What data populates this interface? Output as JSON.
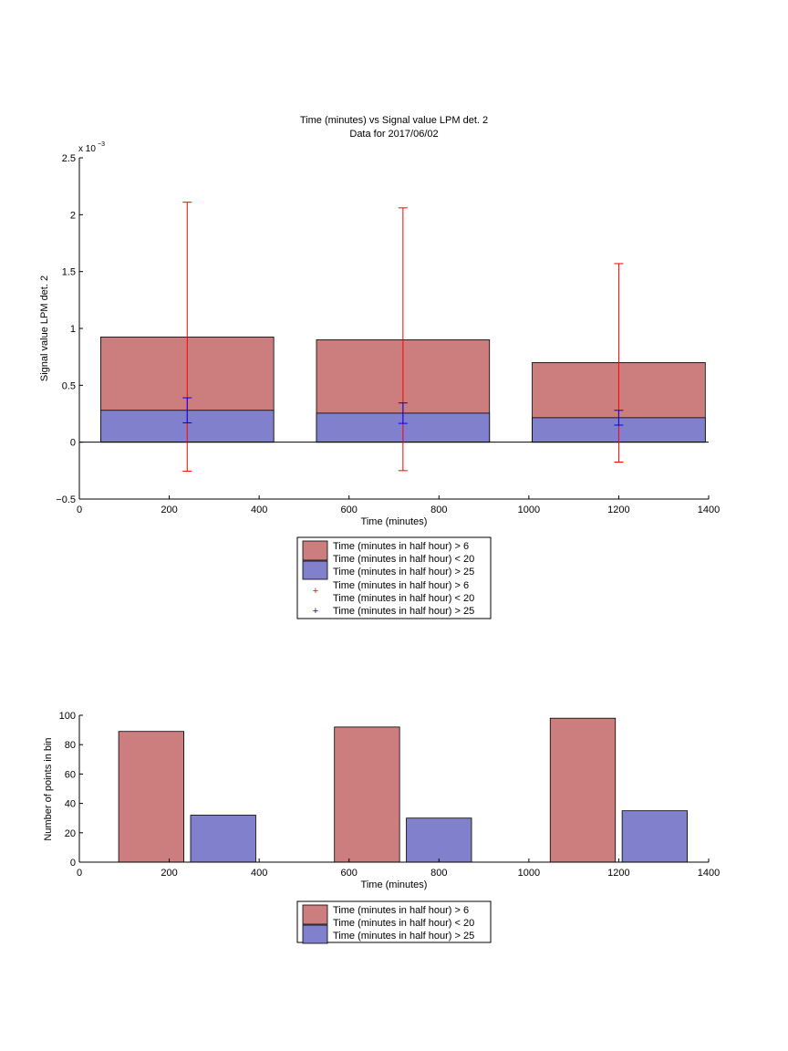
{
  "colors": {
    "red_fill": "#cc7e7e",
    "blue_fill": "#8080cc",
    "err_red": "#ff0000",
    "err_blue": "#0000ff"
  },
  "chart_data": [
    {
      "type": "bar",
      "title": "Time (minutes) vs Signal value LPM det. 2",
      "subtitle": "Data for 2017/06/02",
      "xlabel": "Time (minutes)",
      "ylabel": "Signal value LPM det. 2",
      "y_exponent_label": "x 10",
      "y_exponent_power": "−3",
      "xlim": [
        0,
        1400
      ],
      "ylim": [
        -0.5,
        2.5
      ],
      "y_scale_factor": "1e-3",
      "grid": false,
      "xticks": [
        "0",
        "200",
        "400",
        "600",
        "800",
        "1000",
        "1200",
        "1400"
      ],
      "yticks": [
        "−0.5",
        "0",
        "0.5",
        "1",
        "1.5",
        "2",
        "2.5"
      ],
      "bar_centers": [
        240,
        720,
        1200
      ],
      "bar_width": 385,
      "series": [
        {
          "name": "Time (minutes in half hour) > 6 Time (minutes in half hour) < 20",
          "values": [
            0.925,
            0.9,
            0.7
          ],
          "err_low": [
            -0.255,
            -0.25,
            -0.175
          ],
          "err_high": [
            2.11,
            2.06,
            1.57
          ]
        },
        {
          "name": "Time (minutes in half hour) > 25",
          "values": [
            0.28,
            0.255,
            0.215
          ],
          "err_low": [
            0.17,
            0.165,
            0.15
          ],
          "err_high": [
            0.39,
            0.345,
            0.28
          ]
        }
      ],
      "legend": {
        "placement": "below",
        "entries": [
          "Time (minutes in half hour) > 6",
          "Time (minutes in half hour) < 20",
          "Time (minutes in half hour) > 25",
          "Time (minutes in half hour) > 6",
          "Time (minutes in half hour) < 20",
          "Time (minutes in half hour) > 25"
        ]
      }
    },
    {
      "type": "bar",
      "xlabel": "Time (minutes)",
      "ylabel": "Number of points in bin",
      "xlim": [
        0,
        1400
      ],
      "ylim": [
        0,
        100
      ],
      "grid": false,
      "xticks": [
        "0",
        "200",
        "400",
        "600",
        "800",
        "1000",
        "1200",
        "1400"
      ],
      "yticks": [
        "0",
        "20",
        "40",
        "60",
        "80",
        "100"
      ],
      "bar_width": 145,
      "series": [
        {
          "name": "Time (minutes in half hour) > 6 Time (minutes in half hour) < 20",
          "x": [
            160,
            640,
            1120
          ],
          "values": [
            89,
            92,
            98
          ]
        },
        {
          "name": "Time (minutes in half hour) > 25",
          "x": [
            320,
            800,
            1280
          ],
          "values": [
            32,
            30,
            35
          ]
        }
      ],
      "legend": {
        "placement": "below",
        "entries": [
          "Time (minutes in half hour) > 6",
          "Time (minutes in half hour) < 20",
          "Time (minutes in half hour) > 25"
        ]
      }
    }
  ]
}
